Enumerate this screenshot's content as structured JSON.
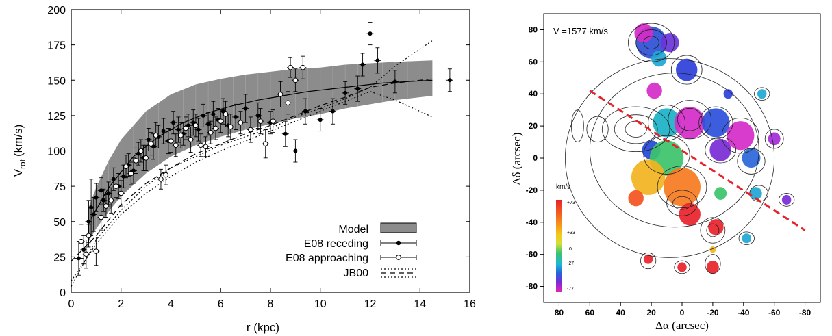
{
  "chart_data": [
    {
      "type": "line",
      "xlabel": "r (kpc)",
      "ylabel_main": "V",
      "ylabel_sub": "rot",
      "ylabel_unit": "(km/s)",
      "xlim": [
        0,
        16
      ],
      "ylim": [
        0,
        200
      ],
      "xticks": [
        "0",
        "2",
        "4",
        "6",
        "8",
        "10",
        "12",
        "14",
        "16"
      ],
      "yticks": [
        "0",
        "25",
        "50",
        "75",
        "100",
        "125",
        "150",
        "175",
        "200"
      ],
      "legend": {
        "position": "bottom-right",
        "entries": [
          "Model",
          "E08 receding",
          "E08 approaching",
          "JB00"
        ]
      },
      "model_band": {
        "name": "Model",
        "color": "#8c8c8c",
        "r": [
          0.7,
          1.0,
          1.5,
          2.0,
          3.0,
          4.0,
          5.0,
          6.0,
          7.0,
          8.0,
          9.0,
          10.0,
          11.0,
          12.0,
          13.0,
          14.5
        ],
        "upper": [
          60,
          74,
          93,
          108,
          128,
          140,
          147,
          151,
          154,
          156,
          158,
          159,
          161,
          162,
          163,
          164
        ],
        "lower": [
          36,
          45,
          57,
          68,
          84,
          96,
          104,
          110,
          115,
          119,
          123,
          126,
          130,
          133,
          136,
          139
        ]
      },
      "series": [
        {
          "name": "E08 receding",
          "marker": "filled",
          "points": [
            [
              0.3,
              24,
              12
            ],
            [
              0.5,
              30,
              10
            ],
            [
              0.7,
              50,
              15
            ],
            [
              0.8,
              60,
              20
            ],
            [
              0.9,
              55,
              12
            ],
            [
              1.0,
              67,
              10
            ],
            [
              1.2,
              72,
              9
            ],
            [
              1.3,
              65,
              8
            ],
            [
              1.5,
              70,
              8
            ],
            [
              1.7,
              80,
              8
            ],
            [
              1.9,
              75,
              9
            ],
            [
              2.1,
              82,
              8
            ],
            [
              2.3,
              90,
              8
            ],
            [
              2.5,
              86,
              9
            ],
            [
              2.7,
              98,
              8
            ],
            [
              2.9,
              95,
              9
            ],
            [
              3.1,
              108,
              8
            ],
            [
              3.3,
              103,
              9
            ],
            [
              3.5,
              110,
              8
            ],
            [
              3.7,
              114,
              9
            ],
            [
              3.9,
              107,
              9
            ],
            [
              4.1,
              120,
              8
            ],
            [
              4.3,
              115,
              9
            ],
            [
              4.5,
              112,
              8
            ],
            [
              4.7,
              118,
              8
            ],
            [
              4.9,
              120,
              9
            ],
            [
              5.1,
              115,
              8
            ],
            [
              5.3,
              125,
              8
            ],
            [
              5.5,
              119,
              8
            ],
            [
              5.7,
              126,
              9
            ],
            [
              5.9,
              122,
              8
            ],
            [
              6.1,
              128,
              9
            ],
            [
              6.3,
              118,
              8
            ],
            [
              6.6,
              124,
              9
            ],
            [
              7.0,
              130,
              10
            ],
            [
              7.5,
              125,
              9
            ],
            [
              8.0,
              120,
              8
            ],
            [
              8.6,
              112,
              9
            ],
            [
              9.0,
              100,
              8
            ],
            [
              9.4,
              128,
              9
            ],
            [
              10.0,
              122,
              8
            ],
            [
              10.5,
              128,
              9
            ],
            [
              11.0,
              141,
              8
            ],
            [
              11.5,
              144,
              9
            ],
            [
              11.7,
              161,
              8
            ],
            [
              12.0,
              183,
              8
            ],
            [
              12.3,
              164,
              9
            ],
            [
              13.0,
              149,
              8
            ],
            [
              15.2,
              150,
              8
            ]
          ]
        },
        {
          "name": "E08 approaching",
          "marker": "open",
          "points": [
            [
              0.4,
              36,
              12
            ],
            [
              0.6,
              27,
              10
            ],
            [
              0.7,
              40,
              8
            ],
            [
              1.0,
              29,
              10
            ],
            [
              1.2,
              53,
              9
            ],
            [
              1.4,
              61,
              8
            ],
            [
              1.6,
              65,
              9
            ],
            [
              1.8,
              75,
              8
            ],
            [
              2.0,
              70,
              9
            ],
            [
              2.2,
              89,
              8
            ],
            [
              2.4,
              84,
              8
            ],
            [
              2.6,
              93,
              9
            ],
            [
              2.8,
              100,
              8
            ],
            [
              3.0,
              95,
              9
            ],
            [
              3.2,
              105,
              8
            ],
            [
              3.4,
              111,
              9
            ],
            [
              3.6,
              80,
              7
            ],
            [
              3.8,
              83,
              7
            ],
            [
              4.0,
              107,
              8
            ],
            [
              4.2,
              104,
              8
            ],
            [
              4.4,
              111,
              9
            ],
            [
              4.6,
              116,
              8
            ],
            [
              4.8,
              108,
              9
            ],
            [
              5.0,
              118,
              8
            ],
            [
              5.2,
              104,
              8
            ],
            [
              5.4,
              103,
              7
            ],
            [
              5.6,
              113,
              8
            ],
            [
              5.8,
              116,
              8
            ],
            [
              6.0,
              121,
              8
            ],
            [
              6.2,
              126,
              9
            ],
            [
              6.4,
              117,
              9
            ],
            [
              6.8,
              120,
              8
            ],
            [
              7.2,
              115,
              9
            ],
            [
              7.6,
              121,
              9
            ],
            [
              7.8,
              105,
              10
            ],
            [
              8.1,
              121,
              8
            ],
            [
              8.4,
              140,
              9
            ],
            [
              8.7,
              134,
              8
            ],
            [
              8.8,
              159,
              7
            ],
            [
              9.0,
              150,
              8
            ],
            [
              9.3,
              159,
              8
            ]
          ]
        }
      ],
      "jb00_a": {
        "name": "JB00",
        "r": [
          0,
          1,
          2,
          3,
          4,
          5,
          6,
          7,
          8,
          9,
          10,
          11,
          12,
          13,
          14.5
        ],
        "v": [
          22,
          40,
          62,
          77,
          88,
          98,
          105,
          112,
          118,
          125,
          132,
          138,
          145,
          148,
          151
        ]
      },
      "jb00_b": {
        "r": [
          0,
          1,
          2,
          3,
          4,
          5,
          6,
          7,
          8,
          9,
          10,
          11,
          12,
          13,
          14.5
        ],
        "v": [
          4,
          37,
          58,
          75,
          88,
          96,
          104,
          110,
          116,
          124,
          130,
          137,
          145,
          160,
          178
        ]
      },
      "jb00_c": {
        "r": [
          0,
          1,
          2,
          3,
          4,
          5,
          6,
          7,
          8,
          9,
          10,
          11,
          12,
          13,
          14.5
        ],
        "v": [
          8,
          34,
          55,
          70,
          82,
          92,
          100,
          107,
          114,
          121,
          128,
          135,
          142,
          136,
          124
        ]
      },
      "solid_curve": {
        "r": [
          0.8,
          1.5,
          2.5,
          3.5,
          4.5,
          5.5,
          6.5,
          7.5,
          8.5,
          9.5,
          10.5,
          11.5,
          12.5,
          13.5,
          14.5
        ],
        "v": [
          52,
          74,
          96,
          110,
          120,
          127,
          132,
          136,
          139,
          142,
          144,
          146,
          148,
          149,
          150
        ]
      }
    },
    {
      "type": "heatmap",
      "label": "V =1577 km/s",
      "xlabel": "Δα (arcsec)",
      "ylabel": "Δδ (arcsec)",
      "xlim": [
        90,
        -90
      ],
      "ylim": [
        -90,
        90
      ],
      "xticks": [
        "80",
        "60",
        "40",
        "20",
        "0",
        "-20",
        "-40",
        "-60",
        "-80"
      ],
      "yticks": [
        "80",
        "60",
        "40",
        "20",
        "0",
        "-20",
        "-40",
        "-60",
        "-80"
      ],
      "colorbar": {
        "title": "km/s",
        "labels": [
          "+73",
          "+33",
          "0",
          "-27",
          "-77"
        ],
        "colors": [
          "#e8222a",
          "#f46d1e",
          "#f7c81a",
          "#cfe03a",
          "#3cc36a",
          "#1db8d6",
          "#2563d9",
          "#7b2bd6",
          "#e024b8"
        ]
      },
      "blobs": [
        {
          "x": 20,
          "y": 72,
          "r": 10,
          "color": "#2d4fd6"
        },
        {
          "x": 25,
          "y": 78,
          "r": 6,
          "color": "#d52bc8"
        },
        {
          "x": 15,
          "y": 62,
          "r": 5,
          "color": "#1fa7d4"
        },
        {
          "x": 8,
          "y": 72,
          "r": 6,
          "color": "#6a34d9"
        },
        {
          "x": -3,
          "y": 55,
          "r": 7,
          "color": "#2b3fd8"
        },
        {
          "x": 18,
          "y": 42,
          "r": 5,
          "color": "#d52bc8"
        },
        {
          "x": 10,
          "y": 22,
          "r": 9,
          "color": "#1ab1c6"
        },
        {
          "x": -5,
          "y": 22,
          "r": 10,
          "color": "#d52bc8"
        },
        {
          "x": -22,
          "y": 22,
          "r": 9,
          "color": "#2c4fdc"
        },
        {
          "x": -38,
          "y": 14,
          "r": 9,
          "color": "#d52bc8"
        },
        {
          "x": 20,
          "y": 5,
          "r": 6,
          "color": "#2448d8"
        },
        {
          "x": -25,
          "y": 5,
          "r": 7,
          "color": "#7a2bd6"
        },
        {
          "x": -45,
          "y": 0,
          "r": 6,
          "color": "#2a66d8"
        },
        {
          "x": -60,
          "y": 12,
          "r": 4,
          "color": "#a52bd6"
        },
        {
          "x": -52,
          "y": 40,
          "r": 3,
          "color": "#1fa7d4"
        },
        {
          "x": -30,
          "y": 40,
          "r": 3,
          "color": "#2b3fd8"
        },
        {
          "x": 10,
          "y": 0,
          "r": 11,
          "color": "#3cc36a"
        },
        {
          "x": 22,
          "y": -12,
          "r": 11,
          "color": "#f2b320"
        },
        {
          "x": 0,
          "y": -18,
          "r": 12,
          "color": "#f57a1e"
        },
        {
          "x": -5,
          "y": -35,
          "r": 7,
          "color": "#e8222a"
        },
        {
          "x": 30,
          "y": -25,
          "r": 5,
          "color": "#f4531f"
        },
        {
          "x": -22,
          "y": -43,
          "r": 5,
          "color": "#e8222a"
        },
        {
          "x": -25,
          "y": -22,
          "r": 4,
          "color": "#3cc36a"
        },
        {
          "x": -48,
          "y": -22,
          "r": 4,
          "color": "#1fa7d4"
        },
        {
          "x": -68,
          "y": -26,
          "r": 3,
          "color": "#7a2bd6"
        },
        {
          "x": -42,
          "y": -50,
          "r": 3,
          "color": "#1fa7d4"
        },
        {
          "x": 22,
          "y": -63,
          "r": 3,
          "color": "#e8222a"
        },
        {
          "x": 0,
          "y": -68,
          "r": 3,
          "color": "#e8222a"
        },
        {
          "x": -20,
          "y": -68,
          "r": 4,
          "color": "#e8222a"
        },
        {
          "x": -20,
          "y": -57,
          "r": 2,
          "color": "#f2b320"
        }
      ],
      "contours": [
        {
          "x": 20,
          "y": 72,
          "rx": 15,
          "ry": 12
        },
        {
          "x": 20,
          "y": 72,
          "rx": 10,
          "ry": 8
        },
        {
          "x": 20,
          "y": 72,
          "rx": 5,
          "ry": 4
        },
        {
          "x": -3,
          "y": 55,
          "rx": 10,
          "ry": 9
        },
        {
          "x": 10,
          "y": 22,
          "rx": 12,
          "ry": 11
        },
        {
          "x": -5,
          "y": 24,
          "rx": 14,
          "ry": 12
        },
        {
          "x": -5,
          "y": 24,
          "rx": 8,
          "ry": 7
        },
        {
          "x": -22,
          "y": 22,
          "rx": 11,
          "ry": 10
        },
        {
          "x": -38,
          "y": 14,
          "rx": 12,
          "ry": 11
        },
        {
          "x": 30,
          "y": 18,
          "rx": 22,
          "ry": 14
        },
        {
          "x": 30,
          "y": 18,
          "rx": 14,
          "ry": 9
        },
        {
          "x": 30,
          "y": 18,
          "rx": 7,
          "ry": 5
        },
        {
          "x": 10,
          "y": 2,
          "rx": 15,
          "ry": 12
        },
        {
          "x": 0,
          "y": -18,
          "rx": 16,
          "ry": 13
        },
        {
          "x": 0,
          "y": -28,
          "rx": 10,
          "ry": 8
        },
        {
          "x": 0,
          "y": -28,
          "rx": 6,
          "ry": 4
        },
        {
          "x": -20,
          "y": -45,
          "rx": 8,
          "ry": 8
        },
        {
          "x": -20,
          "y": -45,
          "rx": 4,
          "ry": 4
        },
        {
          "x": -45,
          "y": -2,
          "rx": 9,
          "ry": 8
        },
        {
          "x": -25,
          "y": 5,
          "rx": 10,
          "ry": 8
        },
        {
          "x": 55,
          "y": 18,
          "rx": 7,
          "ry": 8
        },
        {
          "x": 68,
          "y": 20,
          "rx": 4,
          "ry": 10
        },
        {
          "x": -50,
          "y": -22,
          "rx": 6,
          "ry": 5
        },
        {
          "x": -68,
          "y": -26,
          "rx": 5,
          "ry": 4
        },
        {
          "x": -42,
          "y": -50,
          "rx": 5,
          "ry": 4
        },
        {
          "x": 22,
          "y": -64,
          "rx": 5,
          "ry": 5
        },
        {
          "x": 0,
          "y": -68,
          "rx": 5,
          "ry": 4
        },
        {
          "x": -20,
          "y": -66,
          "rx": 5,
          "ry": 6
        },
        {
          "x": -52,
          "y": 40,
          "rx": 5,
          "ry": 4
        },
        {
          "x": -60,
          "y": 12,
          "rx": 6,
          "ry": 6
        },
        {
          "x": 5,
          "y": 5,
          "rx": 55,
          "ry": 48
        },
        {
          "x": 8,
          "y": 0,
          "rx": 68,
          "ry": 62
        }
      ],
      "dashed_line": {
        "color": "#e8222a",
        "x": [
          60,
          -80
        ],
        "y": [
          42,
          -45
        ]
      }
    }
  ]
}
